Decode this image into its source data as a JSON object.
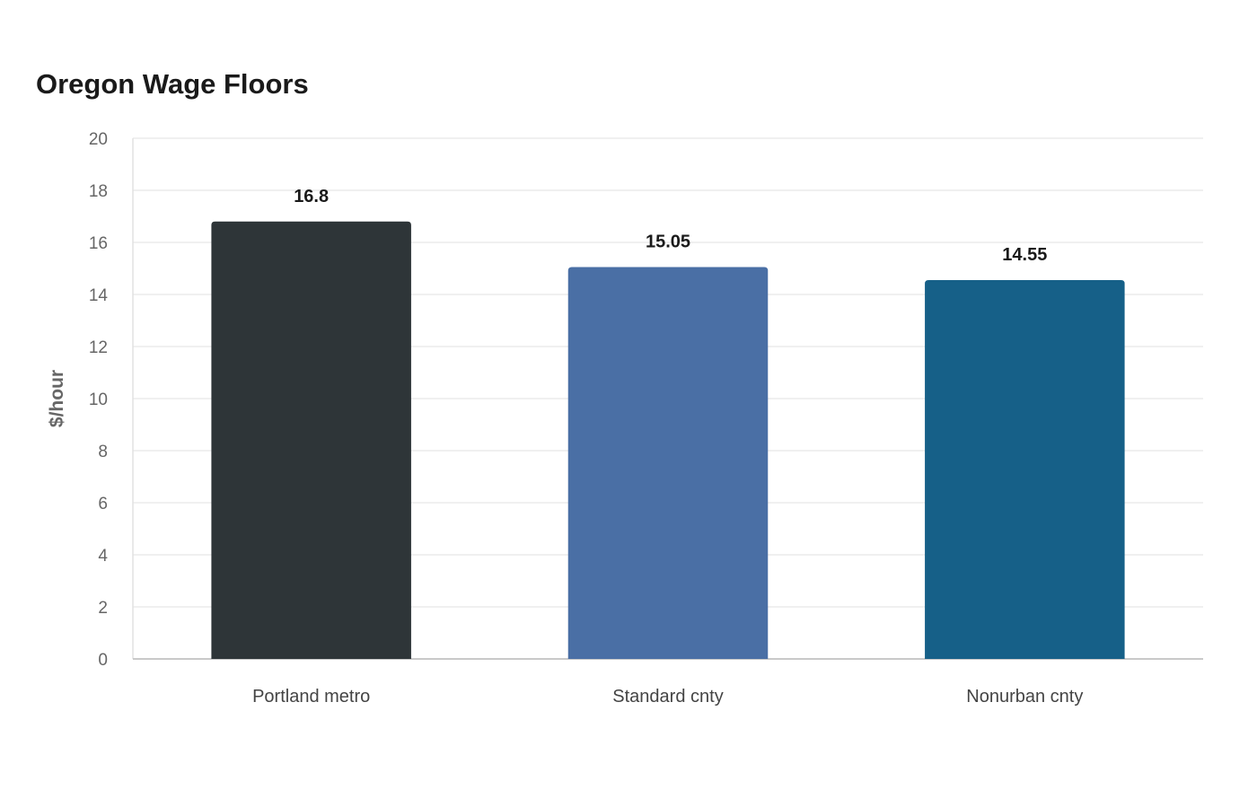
{
  "chart_data": {
    "type": "bar",
    "title": "Oregon Wage Floors",
    "xlabel": "",
    "ylabel": "$/hour",
    "categories": [
      "Portland metro",
      "Standard cnty",
      "Nonurban cnty"
    ],
    "values": [
      16.8,
      15.05,
      14.55
    ],
    "value_labels": [
      "16.8",
      "15.05",
      "14.55"
    ],
    "colors": [
      "#2e3538",
      "#4a6fa5",
      "#166088"
    ],
    "ylim": [
      0,
      20
    ],
    "yticks": [
      0,
      2,
      4,
      6,
      8,
      10,
      12,
      14,
      16,
      18,
      20
    ],
    "grid": true,
    "legend": "none"
  }
}
